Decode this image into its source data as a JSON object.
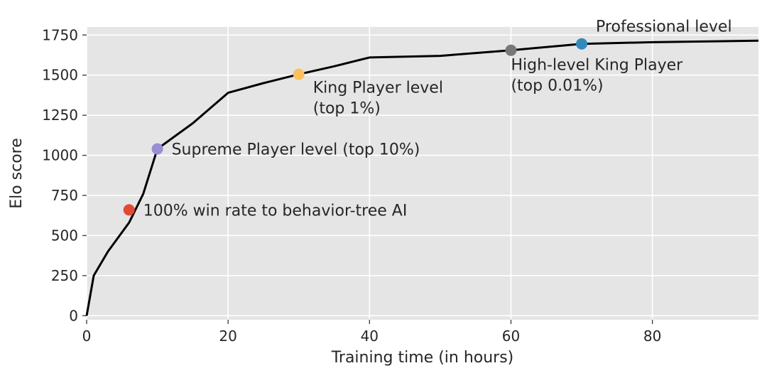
{
  "chart_data": {
    "type": "line",
    "title": "",
    "xlabel": "Training time (in hours)",
    "ylabel": "Elo score",
    "xlim": [
      0,
      95
    ],
    "ylim": [
      -25,
      1800
    ],
    "xticks": [
      0,
      20,
      40,
      60,
      80
    ],
    "yticks": [
      0,
      250,
      500,
      750,
      1000,
      1250,
      1500,
      1750
    ],
    "grid": true,
    "background": "#e5e5e5",
    "line_color": "#000000",
    "series": [
      {
        "x": [
          0,
          1,
          3,
          6,
          8,
          10,
          15,
          20,
          25,
          30,
          35,
          40,
          50,
          60,
          70,
          80,
          95
        ],
        "y": [
          0,
          250,
          400,
          580,
          760,
          1040,
          1200,
          1390,
          1450,
          1505,
          1555,
          1610,
          1620,
          1655,
          1695,
          1705,
          1715
        ]
      }
    ],
    "annotations": [
      {
        "x": 6,
        "y": 660,
        "color": "#e24a33",
        "lines": [
          "100% win rate to behavior-tree AI"
        ],
        "placement": "right"
      },
      {
        "x": 10,
        "y": 1040,
        "color": "#988ed5",
        "lines": [
          "Supreme Player level (top 10%)"
        ],
        "placement": "right"
      },
      {
        "x": 30,
        "y": 1505,
        "color": "#fbc15e",
        "lines": [
          "King Player level",
          "(top 1%)"
        ],
        "placement": "below-right"
      },
      {
        "x": 60,
        "y": 1655,
        "color": "#777777",
        "lines": [
          "High-level King Player",
          "(top 0.01%)"
        ],
        "placement": "below"
      },
      {
        "x": 70,
        "y": 1695,
        "color": "#348abd",
        "lines": [
          "Professional level"
        ],
        "placement": "above-right"
      }
    ]
  }
}
